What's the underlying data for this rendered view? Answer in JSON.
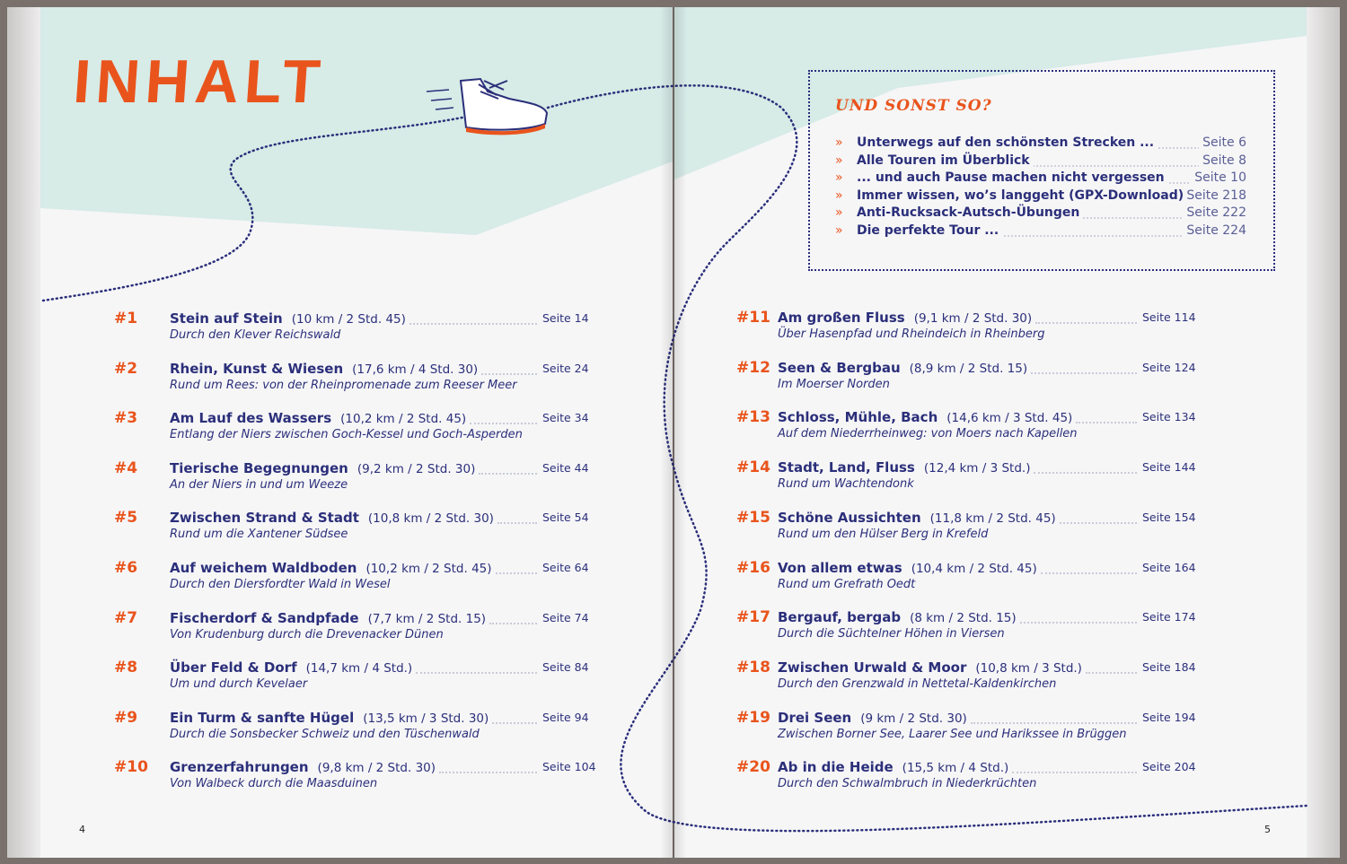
{
  "left_page": {
    "title": "INHALT",
    "folio": "4",
    "entries": [
      {
        "num": "#1",
        "title": "Stein auf Stein",
        "info": "(10 km / 2 Std. 45)",
        "page": "Seite 14",
        "subtitle": "Durch den Klever Reichswald"
      },
      {
        "num": "#2",
        "title": "Rhein, Kunst & Wiesen",
        "info": "(17,6 km / 4 Std. 30)",
        "page": "Seite 24",
        "subtitle": "Rund um Rees: von der Rheinpromenade zum Reeser Meer"
      },
      {
        "num": "#3",
        "title": "Am Lauf des Wassers",
        "info": "(10,2 km / 2 Std. 45)",
        "page": "Seite 34",
        "subtitle": "Entlang der Niers zwischen Goch-Kessel und Goch-Asperden"
      },
      {
        "num": "#4",
        "title": "Tierische Begegnungen",
        "info": "(9,2 km / 2 Std. 30)",
        "page": "Seite 44",
        "subtitle": "An der Niers in und um Weeze"
      },
      {
        "num": "#5",
        "title": "Zwischen Strand & Stadt",
        "info": "(10,8 km / 2 Std. 30)",
        "page": "Seite 54",
        "subtitle": "Rund um die Xantener Südsee"
      },
      {
        "num": "#6",
        "title": "Auf weichem Waldboden",
        "info": "(10,2 km / 2 Std. 45)",
        "page": "Seite 64",
        "subtitle": "Durch den Diersfordter Wald in Wesel"
      },
      {
        "num": "#7",
        "title": "Fischerdorf & Sandpfade",
        "info": "(7,7 km / 2 Std. 15)",
        "page": "Seite 74",
        "subtitle": "Von Krudenburg durch die Drevenacker Dünen"
      },
      {
        "num": "#8",
        "title": "Über Feld & Dorf",
        "info": "(14,7 km / 4 Std.)",
        "page": "Seite 84",
        "subtitle": "Um und durch Kevelaer"
      },
      {
        "num": "#9",
        "title": "Ein Turm & sanfte Hügel",
        "info": "(13,5 km / 3 Std. 30)",
        "page": "Seite 94",
        "subtitle": "Durch die Sonsbecker Schweiz und den Tüschenwald"
      },
      {
        "num": "#10",
        "title": "Grenzerfahrungen",
        "info": "(9,8 km / 2 Std. 30)",
        "page": "Seite 104",
        "subtitle": "Von Walbeck durch die Maasduinen"
      }
    ]
  },
  "right_page": {
    "folio": "5",
    "box": {
      "heading": "UND SONST SO?",
      "items": [
        {
          "label": "Unterwegs auf den schönsten Strecken ...",
          "page": "Seite 6"
        },
        {
          "label": "Alle Touren im Überblick",
          "page": "Seite 8"
        },
        {
          "label": "... und auch Pause machen nicht vergessen",
          "page": "Seite 10"
        },
        {
          "label": "Immer wissen, wo’s langgeht (GPX-Download)",
          "page": "Seite 218"
        },
        {
          "label": "Anti-Rucksack-Autsch-Übungen",
          "page": "Seite 222"
        },
        {
          "label": "Die perfekte Tour ...",
          "page": "Seite 224"
        }
      ]
    },
    "entries": [
      {
        "num": "#11",
        "title": "Am großen Fluss",
        "info": "(9,1 km / 2 Std. 30)",
        "page": "Seite 114",
        "subtitle": "Über Hasenpfad und Rheindeich in Rheinberg"
      },
      {
        "num": "#12",
        "title": "Seen & Bergbau",
        "info": "(8,9 km / 2 Std. 15)",
        "page": "Seite 124",
        "subtitle": "Im Moerser Norden"
      },
      {
        "num": "#13",
        "title": "Schloss, Mühle, Bach",
        "info": "(14,6 km / 3 Std. 45)",
        "page": "Seite 134",
        "subtitle": "Auf dem Niederrheinweg: von Moers nach Kapellen"
      },
      {
        "num": "#14",
        "title": "Stadt, Land, Fluss",
        "info": "(12,4 km / 3 Std.)",
        "page": "Seite 144",
        "subtitle": "Rund um Wachtendonk"
      },
      {
        "num": "#15",
        "title": "Schöne Aussichten",
        "info": "(11,8 km / 2 Std. 45)",
        "page": "Seite 154",
        "subtitle": "Rund um den Hülser Berg in Krefeld"
      },
      {
        "num": "#16",
        "title": "Von allem etwas",
        "info": "(10,4 km / 2 Std. 45)",
        "page": "Seite 164",
        "subtitle": "Rund um Grefrath Oedt"
      },
      {
        "num": "#17",
        "title": "Bergauf, bergab",
        "info": "(8 km / 2 Std. 15)",
        "page": "Seite 174",
        "subtitle": "Durch die Süchtelner Höhen in Viersen"
      },
      {
        "num": "#18",
        "title": "Zwischen Urwald & Moor",
        "info": "(10,8 km / 3 Std.)",
        "page": "Seite 184",
        "subtitle": "Durch den Grenzwald in Nettetal-Kaldenkirchen"
      },
      {
        "num": "#19",
        "title": "Drei Seen",
        "info": "(9 km / 2 Std. 30)",
        "page": "Seite 194",
        "subtitle": "Zwischen Borner See, Laarer See und Harikssee in Brüggen"
      },
      {
        "num": "#20",
        "title": "Ab in die Heide",
        "info": "(15,5 km / 4 Std.)",
        "page": "Seite 204",
        "subtitle": "Durch den Schwalmbruch in Niederkrüchten"
      }
    ]
  },
  "colors": {
    "accent": "#e9541c",
    "text": "#2b2f7a",
    "teal": "#d7ebe7"
  },
  "icons": [
    "hiking-boot-icon",
    "double-chevron-right-icon",
    "dotted-trail"
  ]
}
